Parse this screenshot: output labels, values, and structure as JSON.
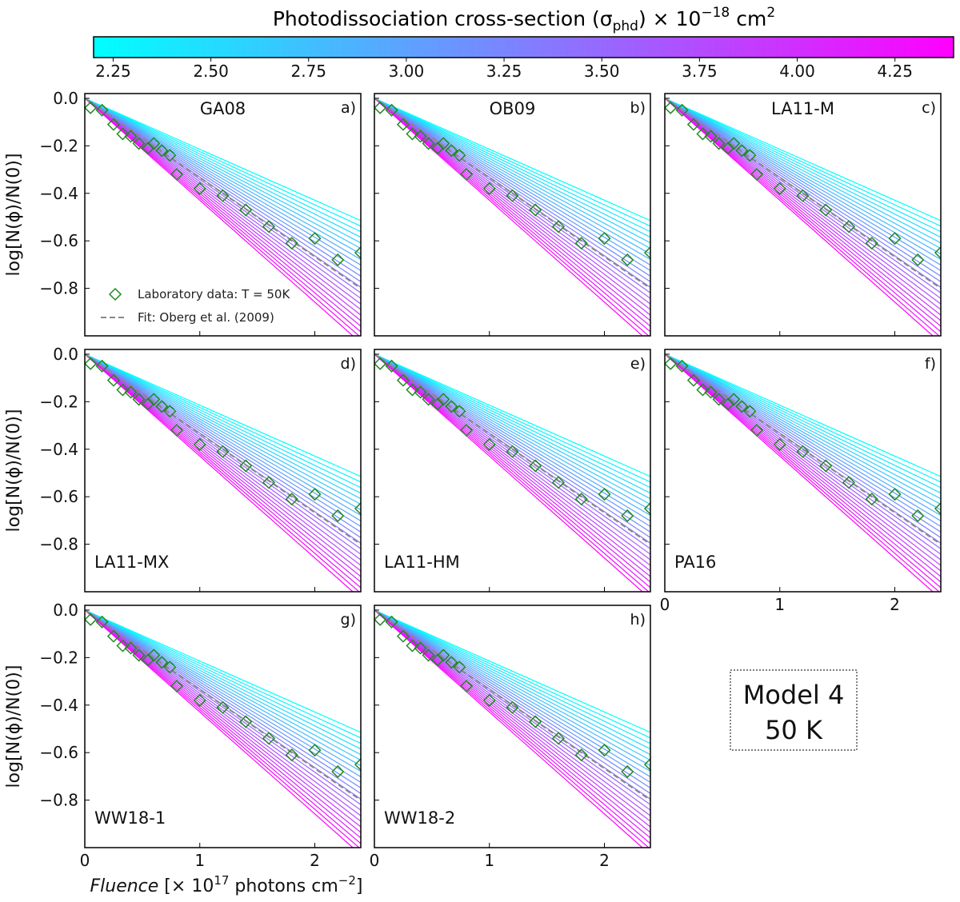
{
  "chart_data": {
    "type": "line",
    "title": "Model 4 50 K",
    "model_label": "Model 4",
    "temperature_label": "50 K",
    "colorbar": {
      "title_prefix": "Photodissociation cross-section (σ",
      "title_sub": "phd",
      "title_mid": ") × 10",
      "title_sup": "−18",
      "title_unit": " cm",
      "title_unit_sup": "2",
      "min": 2.2,
      "max": 4.4,
      "ticks": [
        2.25,
        2.5,
        2.75,
        3.0,
        3.25,
        3.5,
        3.75,
        4.0,
        4.25
      ],
      "tick_labels": [
        "2.25",
        "2.50",
        "2.75",
        "3.00",
        "3.25",
        "3.50",
        "3.75",
        "4.00",
        "4.25"
      ],
      "colors": [
        "#00ffff",
        "#ff00ff"
      ]
    },
    "xlabel_italic": "Fluence",
    "xlabel_rest_1": " [× 10",
    "xlabel_sup": "17",
    "xlabel_rest_2": " photons cm",
    "xlabel_sup2": "−2",
    "xlabel_rest_3": "]",
    "ylabel": "log[N(ϕ)/N(0)]",
    "xlim": [
      0,
      2.4
    ],
    "ylim": [
      -1.0,
      0.02
    ],
    "xticks": [
      0,
      1,
      2
    ],
    "xtick_labels": [
      "0",
      "1",
      "2"
    ],
    "yticks": [
      0.0,
      -0.2,
      -0.4,
      -0.6,
      -0.8
    ],
    "ytick_labels": [
      "0.0",
      "−0.2",
      "−0.4",
      "−0.6",
      "−0.8"
    ],
    "model_cross_sections_1e18": [
      2.2,
      2.3,
      2.4,
      2.5,
      2.6,
      2.7,
      2.8,
      2.9,
      3.0,
      3.1,
      3.2,
      3.3,
      3.4,
      3.5,
      3.6,
      3.7,
      3.8,
      3.9,
      4.0,
      4.1,
      4.2,
      4.3,
      4.4
    ],
    "lab_data": {
      "name": "Laboratory data: T = 50K",
      "x": [
        0.05,
        0.15,
        0.25,
        0.33,
        0.4,
        0.47,
        0.55,
        0.6,
        0.67,
        0.74,
        0.8,
        1.0,
        1.2,
        1.4,
        1.6,
        1.8,
        2.0,
        2.2,
        2.4
      ],
      "y": [
        -0.04,
        -0.05,
        -0.11,
        -0.15,
        -0.16,
        -0.19,
        -0.21,
        -0.19,
        -0.22,
        -0.24,
        -0.32,
        -0.38,
        -0.41,
        -0.47,
        -0.54,
        -0.61,
        -0.59,
        -0.68,
        -0.65
      ]
    },
    "fit": {
      "name": "Fit: Oberg et al. (2009)",
      "x": [
        0,
        2.4
      ],
      "y": [
        0.0,
        -0.8
      ]
    },
    "panels": [
      {
        "name": "GA08",
        "letter": "a)",
        "name_pos": "top",
        "legend": true
      },
      {
        "name": "OB09",
        "letter": "b)",
        "name_pos": "top",
        "legend": false
      },
      {
        "name": "LA11-M",
        "letter": "c)",
        "name_pos": "top",
        "legend": false
      },
      {
        "name": "LA11-MX",
        "letter": "d)",
        "name_pos": "bottom",
        "legend": false
      },
      {
        "name": "LA11-HM",
        "letter": "e)",
        "name_pos": "bottom",
        "legend": false
      },
      {
        "name": "PA16",
        "letter": "f)",
        "name_pos": "bottom",
        "legend": false
      },
      {
        "name": "WW18-1",
        "letter": "g)",
        "name_pos": "bottom",
        "legend": false
      },
      {
        "name": "WW18-2",
        "letter": "h)",
        "name_pos": "bottom",
        "legend": false
      }
    ],
    "legend_colors": {
      "marker": "#1f8a1f",
      "fit": "#888888"
    }
  }
}
